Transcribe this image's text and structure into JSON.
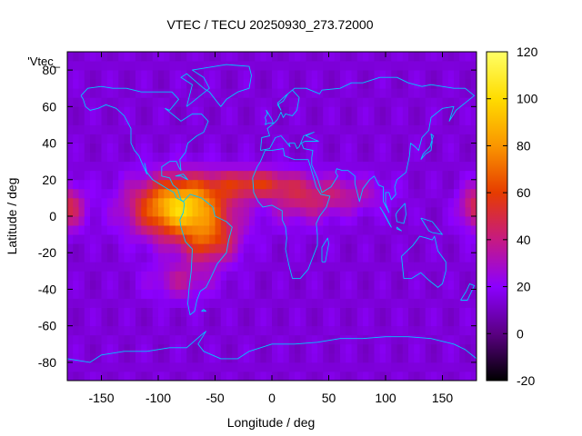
{
  "chart_data": {
    "type": "heatmap",
    "title": "VTEC / TECU 20250930_273.72000",
    "xlabel": "Longitude / deg",
    "ylabel": "Latitude / deg",
    "xlim": [
      -180,
      180
    ],
    "ylim": [
      -90,
      90
    ],
    "x_ticks": [
      -150,
      -100,
      -50,
      0,
      50,
      100,
      150
    ],
    "y_ticks": [
      80,
      60,
      40,
      20,
      0,
      -20,
      -40,
      -60,
      -80
    ],
    "colorbar": {
      "range": [
        -20,
        120
      ],
      "ticks": [
        120,
        100,
        80,
        60,
        40,
        20,
        0,
        -20
      ],
      "palette": [
        "#000000",
        "#5a0082",
        "#8c00ff",
        "#c61a82",
        "#e63c00",
        "#fa9600",
        "#ffdc00",
        "#ffff66"
      ]
    },
    "legend": {
      "label": "'Vtec_",
      "position": "top-left"
    },
    "grid_resolution_deg": [
      5,
      5
    ],
    "blobs": [
      {
        "lon": -80,
        "lat": 5,
        "slon": 40,
        "slat": 16,
        "amp": 85
      },
      {
        "lon": -55,
        "lat": -14,
        "slon": 24,
        "slat": 12,
        "amp": 38
      },
      {
        "lon": -15,
        "lat": 18,
        "slon": 38,
        "slat": 8,
        "amp": 38
      },
      {
        "lon": 25,
        "lat": 8,
        "slon": 28,
        "slat": 12,
        "amp": 22
      },
      {
        "lon": 65,
        "lat": 12,
        "slon": 35,
        "slat": 10,
        "amp": 20
      },
      {
        "lon": 180,
        "lat": 5,
        "slon": 15,
        "slat": 12,
        "amp": 35
      },
      {
        "lon": -180,
        "lat": 5,
        "slon": 15,
        "slat": 12,
        "amp": 35
      },
      {
        "lon": -80,
        "lat": -35,
        "slon": 28,
        "slat": 10,
        "amp": 20
      }
    ],
    "background_level": 14,
    "coastline_color": "#00c8ff"
  }
}
